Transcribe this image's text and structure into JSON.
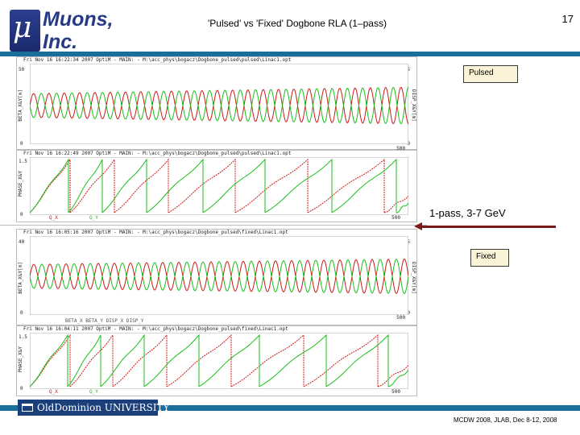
{
  "header": {
    "logo_mu": "μ",
    "logo_line1": "Muons,",
    "logo_line2": "Inc.",
    "title": "'Pulsed' vs 'Fixed' Dogbone RLA (1–pass)",
    "page_number": "17"
  },
  "pulsed": {
    "label": "Pulsed",
    "beta_panel": {
      "header": "Fri Nov 16 16:22:34 2007    OptiM - MAIN: - M:\\acc_phys\\bogacz\\Dogbone_pulsed\\pulsed\\Linac1.opt",
      "ylabel_left": "BETA_X&Y[m]",
      "ylabel_right": "DISP_X&Y[m]",
      "y_top_left": "50",
      "y_top_right": "5",
      "y_bottom_left": "0",
      "y_bottom_right": "0",
      "x_end": "500"
    },
    "phase_panel": {
      "header": "Fri Nov 16 16:22:49 2007    OptiM - MAIN: - M:\\acc_phys\\bogacz\\Dogbone_pulsed\\pulsed\\Linac1.opt",
      "ylabel": "PHASE_X&Y",
      "y_top": "1.5",
      "y_bottom": "0",
      "x_end": "500",
      "legend_x": "Q_X",
      "legend_y": "Q_Y"
    }
  },
  "fixed": {
    "label": "Fixed",
    "beta_panel": {
      "header": "Fri Nov 16 16:05:16 2007    OptiM - MAIN: - M:\\acc_phys\\bogacz\\Dogbone_pulsed\\fixed\\Linac1.opt",
      "ylabel_left": "BETA_X&Y[m]",
      "ylabel_right": "DISP_X&Y[m]",
      "y_top_left": "40",
      "y_top_right": "5",
      "y_bottom_left": "0",
      "y_bottom_right": "0",
      "x_end": "500",
      "legend": "BETA_X    BETA_Y    DISP_X    DISP_Y"
    },
    "phase_panel": {
      "header": "Fri Nov 16 16:04:11 2007    OptiM - MAIN: - M:\\acc_phys\\bogacz\\Dogbone_pulsed\\fixed\\Linac1.opt",
      "ylabel": "PHASE_X&Y",
      "y_top": "1.5",
      "y_bottom": "0",
      "x_end": "500",
      "legend_x": "Q_X",
      "legend_y": "Q_Y"
    }
  },
  "annotation": "1-pass, 3-7 GeV",
  "footer": {
    "university": "OldDominion UNIVERSITY",
    "conference": "MCDW 2008, JLAB, Dec 8-12, 2008"
  },
  "colors": {
    "x_plane": "#d01818",
    "y_plane": "#18c018",
    "accent_bar": "#1a6e9e",
    "arrow": "#7a1a1a",
    "label_fill": "#fbf3d8"
  }
}
